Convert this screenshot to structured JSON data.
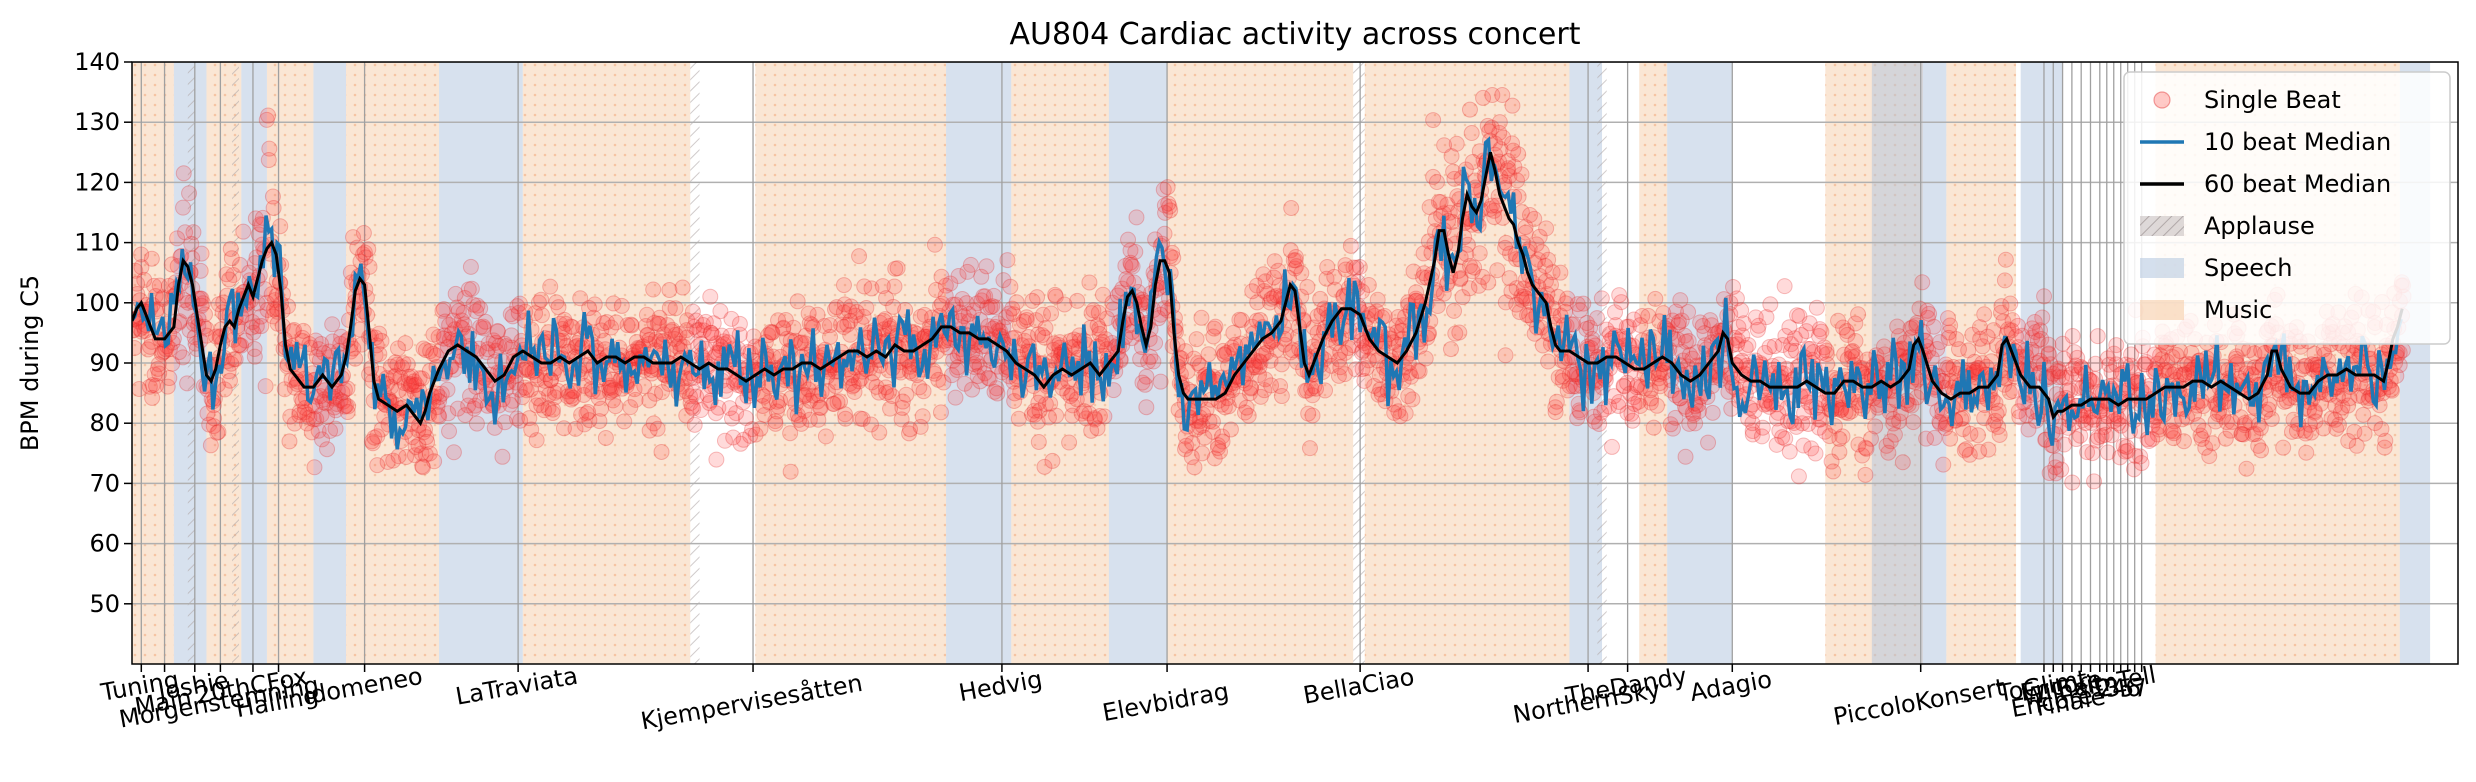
{
  "chart_data": {
    "type": "line",
    "title": "AU804 Cardiac activity across concert",
    "xlabel": "",
    "ylabel": "BPM during C5",
    "ylim": [
      40,
      140
    ],
    "yticks": [
      50,
      60,
      70,
      80,
      90,
      100,
      110,
      120,
      130,
      140
    ],
    "xlim": [
      0,
      1000
    ],
    "grid": true,
    "legend_position": "top-right",
    "legend": [
      {
        "label": "Single Beat",
        "kind": "scatter",
        "color": "#ff0000"
      },
      {
        "label": "10 beat Median",
        "kind": "line",
        "color": "#1f77b4"
      },
      {
        "label": "60 beat Median",
        "kind": "line",
        "color": "#000000"
      },
      {
        "label": "Applause",
        "kind": "patch",
        "color": "#c8c0c0"
      },
      {
        "label": "Speech",
        "kind": "patch",
        "color": "#b0c4de"
      },
      {
        "label": "Music",
        "kind": "patch",
        "color": "#f5c8a0"
      }
    ],
    "xtick_labels": [
      {
        "x": 4,
        "label": "Tuning"
      },
      {
        "x": 14,
        "label": "Main"
      },
      {
        "x": 27,
        "label": "Joshie"
      },
      {
        "x": 38,
        "label": "Morgenstemning"
      },
      {
        "x": 52,
        "label": "20thCFox"
      },
      {
        "x": 63,
        "label": "Halling"
      },
      {
        "x": 100,
        "label": "Idomeneo"
      },
      {
        "x": 166,
        "label": "LaTraviata"
      },
      {
        "x": 267,
        "label": "Kjempervisesåtten"
      },
      {
        "x": 374,
        "label": "Hedvig"
      },
      {
        "x": 445,
        "label": "Elevbidrag"
      },
      {
        "x": 528,
        "label": "BellaCiao"
      },
      {
        "x": 626,
        "label": "NorthernSky"
      },
      {
        "x": 643,
        "label": "TheDandy"
      },
      {
        "x": 688,
        "label": "Adagio"
      },
      {
        "x": 769,
        "label": "PiccoloKonsert"
      },
      {
        "x": 822,
        "label": "ToGlimt"
      },
      {
        "x": 826,
        "label": "Encore"
      },
      {
        "x": 830,
        "label": "Encore"
      },
      {
        "x": 834,
        "label": "Finale"
      },
      {
        "x": 838,
        "label": "Exit"
      },
      {
        "x": 842,
        "label": "WilhelmTell"
      },
      {
        "x": 846,
        "label": "1"
      },
      {
        "x": 849,
        "label": "2"
      },
      {
        "x": 852,
        "label": "3"
      },
      {
        "x": 855,
        "label": "4"
      },
      {
        "x": 858,
        "label": "5"
      },
      {
        "x": 861,
        "label": "6"
      },
      {
        "x": 864,
        "label": "7"
      }
    ],
    "x_vlines": [
      4,
      14,
      27,
      38,
      52,
      63,
      100,
      166,
      267,
      374,
      445,
      528,
      626,
      643,
      688,
      769,
      822,
      826,
      830,
      834,
      838,
      842,
      846,
      849,
      852,
      855,
      858,
      861,
      864
    ],
    "segments": {
      "music": [
        [
          0,
          18
        ],
        [
          32,
          47
        ],
        [
          58,
          78
        ],
        [
          92,
          132
        ],
        [
          168,
          240
        ],
        [
          268,
          350
        ],
        [
          378,
          420
        ],
        [
          445,
          525
        ],
        [
          530,
          618
        ],
        [
          648,
          660
        ],
        [
          728,
          770
        ],
        [
          780,
          810
        ],
        [
          870,
          975
        ]
      ],
      "speech": [
        [
          18,
          32
        ],
        [
          47,
          58
        ],
        [
          78,
          92
        ],
        [
          132,
          168
        ],
        [
          350,
          378
        ],
        [
          420,
          445
        ],
        [
          618,
          632
        ],
        [
          660,
          688
        ],
        [
          748,
          780
        ],
        [
          812,
          830
        ],
        [
          975,
          988
        ]
      ],
      "applause": [
        [
          24,
          27
        ],
        [
          43,
          46
        ],
        [
          240,
          244
        ],
        [
          525,
          530
        ],
        [
          630,
          634
        ]
      ]
    },
    "median60": [
      [
        0,
        97
      ],
      [
        2,
        99
      ],
      [
        4,
        100
      ],
      [
        6,
        98
      ],
      [
        8,
        96
      ],
      [
        10,
        94
      ],
      [
        14,
        94
      ],
      [
        18,
        96
      ],
      [
        20,
        103
      ],
      [
        22,
        107
      ],
      [
        24,
        106
      ],
      [
        26,
        103
      ],
      [
        28,
        98
      ],
      [
        30,
        93
      ],
      [
        32,
        88
      ],
      [
        34,
        87
      ],
      [
        36,
        89
      ],
      [
        38,
        93
      ],
      [
        40,
        96
      ],
      [
        42,
        97
      ],
      [
        44,
        96
      ],
      [
        46,
        99
      ],
      [
        48,
        101
      ],
      [
        50,
        103
      ],
      [
        52,
        101
      ],
      [
        54,
        104
      ],
      [
        56,
        107
      ],
      [
        58,
        109
      ],
      [
        60,
        110
      ],
      [
        62,
        108
      ],
      [
        64,
        102
      ],
      [
        66,
        93
      ],
      [
        68,
        89
      ],
      [
        70,
        88
      ],
      [
        72,
        87
      ],
      [
        74,
        86
      ],
      [
        78,
        86
      ],
      [
        82,
        88
      ],
      [
        86,
        86
      ],
      [
        90,
        88
      ],
      [
        92,
        91
      ],
      [
        94,
        96
      ],
      [
        96,
        102
      ],
      [
        98,
        104
      ],
      [
        100,
        103
      ],
      [
        102,
        95
      ],
      [
        104,
        87
      ],
      [
        106,
        84
      ],
      [
        110,
        83
      ],
      [
        114,
        82
      ],
      [
        118,
        83
      ],
      [
        120,
        82
      ],
      [
        124,
        80
      ],
      [
        126,
        82
      ],
      [
        128,
        85
      ],
      [
        132,
        89
      ],
      [
        136,
        92
      ],
      [
        140,
        93
      ],
      [
        144,
        92
      ],
      [
        148,
        91
      ],
      [
        152,
        89
      ],
      [
        156,
        87
      ],
      [
        160,
        88
      ],
      [
        164,
        91
      ],
      [
        168,
        92
      ],
      [
        172,
        91
      ],
      [
        176,
        90
      ],
      [
        180,
        90
      ],
      [
        184,
        91
      ],
      [
        188,
        90
      ],
      [
        192,
        91
      ],
      [
        196,
        92
      ],
      [
        200,
        90
      ],
      [
        204,
        91
      ],
      [
        208,
        91
      ],
      [
        212,
        90
      ],
      [
        216,
        91
      ],
      [
        220,
        91
      ],
      [
        224,
        90
      ],
      [
        228,
        90
      ],
      [
        232,
        90
      ],
      [
        236,
        91
      ],
      [
        240,
        90
      ],
      [
        244,
        89
      ],
      [
        248,
        90
      ],
      [
        252,
        89
      ],
      [
        256,
        89
      ],
      [
        260,
        88
      ],
      [
        264,
        87
      ],
      [
        268,
        88
      ],
      [
        272,
        89
      ],
      [
        276,
        88
      ],
      [
        280,
        89
      ],
      [
        284,
        89
      ],
      [
        288,
        90
      ],
      [
        292,
        90
      ],
      [
        296,
        89
      ],
      [
        300,
        90
      ],
      [
        304,
        91
      ],
      [
        308,
        92
      ],
      [
        312,
        92
      ],
      [
        316,
        91
      ],
      [
        320,
        92
      ],
      [
        324,
        91
      ],
      [
        328,
        93
      ],
      [
        332,
        92
      ],
      [
        336,
        92
      ],
      [
        340,
        93
      ],
      [
        344,
        94
      ],
      [
        348,
        96
      ],
      [
        352,
        96
      ],
      [
        356,
        95
      ],
      [
        360,
        95
      ],
      [
        364,
        94
      ],
      [
        368,
        94
      ],
      [
        372,
        93
      ],
      [
        376,
        92
      ],
      [
        380,
        90
      ],
      [
        384,
        89
      ],
      [
        388,
        88
      ],
      [
        392,
        86
      ],
      [
        396,
        88
      ],
      [
        400,
        89
      ],
      [
        404,
        88
      ],
      [
        408,
        89
      ],
      [
        412,
        90
      ],
      [
        416,
        88
      ],
      [
        420,
        90
      ],
      [
        424,
        92
      ],
      [
        426,
        97
      ],
      [
        428,
        101
      ],
      [
        430,
        102
      ],
      [
        432,
        100
      ],
      [
        434,
        96
      ],
      [
        436,
        93
      ],
      [
        438,
        96
      ],
      [
        440,
        103
      ],
      [
        442,
        107
      ],
      [
        444,
        107
      ],
      [
        446,
        105
      ],
      [
        448,
        95
      ],
      [
        450,
        88
      ],
      [
        452,
        85
      ],
      [
        454,
        84
      ],
      [
        458,
        84
      ],
      [
        462,
        84
      ],
      [
        466,
        84
      ],
      [
        470,
        85
      ],
      [
        474,
        88
      ],
      [
        478,
        90
      ],
      [
        482,
        92
      ],
      [
        486,
        94
      ],
      [
        490,
        95
      ],
      [
        494,
        97
      ],
      [
        496,
        100
      ],
      [
        498,
        103
      ],
      [
        500,
        102
      ],
      [
        502,
        96
      ],
      [
        504,
        90
      ],
      [
        506,
        88
      ],
      [
        508,
        90
      ],
      [
        512,
        94
      ],
      [
        516,
        97
      ],
      [
        520,
        99
      ],
      [
        524,
        99
      ],
      [
        528,
        98
      ],
      [
        532,
        94
      ],
      [
        536,
        92
      ],
      [
        540,
        91
      ],
      [
        544,
        90
      ],
      [
        548,
        92
      ],
      [
        552,
        95
      ],
      [
        556,
        100
      ],
      [
        560,
        107
      ],
      [
        562,
        112
      ],
      [
        564,
        112
      ],
      [
        566,
        108
      ],
      [
        568,
        105
      ],
      [
        570,
        108
      ],
      [
        572,
        114
      ],
      [
        574,
        118
      ],
      [
        576,
        116
      ],
      [
        578,
        115
      ],
      [
        580,
        117
      ],
      [
        582,
        121
      ],
      [
        584,
        125
      ],
      [
        586,
        122
      ],
      [
        588,
        118
      ],
      [
        590,
        116
      ],
      [
        592,
        114
      ],
      [
        594,
        113
      ],
      [
        596,
        110
      ],
      [
        598,
        108
      ],
      [
        600,
        105
      ],
      [
        602,
        103
      ],
      [
        604,
        102
      ],
      [
        606,
        101
      ],
      [
        608,
        100
      ],
      [
        610,
        96
      ],
      [
        612,
        93
      ],
      [
        614,
        92
      ],
      [
        618,
        92
      ],
      [
        622,
        91
      ],
      [
        626,
        90
      ],
      [
        630,
        90
      ],
      [
        634,
        91
      ],
      [
        638,
        91
      ],
      [
        642,
        90
      ],
      [
        646,
        89
      ],
      [
        650,
        89
      ],
      [
        654,
        90
      ],
      [
        658,
        91
      ],
      [
        662,
        90
      ],
      [
        666,
        88
      ],
      [
        670,
        87
      ],
      [
        674,
        88
      ],
      [
        678,
        90
      ],
      [
        682,
        92
      ],
      [
        684,
        95
      ],
      [
        686,
        94
      ],
      [
        688,
        90
      ],
      [
        692,
        88
      ],
      [
        696,
        87
      ],
      [
        700,
        87
      ],
      [
        704,
        86
      ],
      [
        708,
        86
      ],
      [
        712,
        86
      ],
      [
        716,
        86
      ],
      [
        720,
        87
      ],
      [
        724,
        86
      ],
      [
        728,
        85
      ],
      [
        732,
        85
      ],
      [
        736,
        87
      ],
      [
        740,
        87
      ],
      [
        744,
        86
      ],
      [
        748,
        86
      ],
      [
        752,
        87
      ],
      [
        756,
        86
      ],
      [
        760,
        87
      ],
      [
        764,
        89
      ],
      [
        766,
        93
      ],
      [
        768,
        94
      ],
      [
        770,
        92
      ],
      [
        774,
        87
      ],
      [
        778,
        85
      ],
      [
        782,
        84
      ],
      [
        786,
        85
      ],
      [
        790,
        85
      ],
      [
        794,
        86
      ],
      [
        798,
        86
      ],
      [
        802,
        88
      ],
      [
        804,
        93
      ],
      [
        806,
        94
      ],
      [
        808,
        92
      ],
      [
        812,
        88
      ],
      [
        816,
        86
      ],
      [
        820,
        86
      ],
      [
        824,
        84
      ],
      [
        826,
        81
      ],
      [
        828,
        82
      ],
      [
        830,
        82
      ],
      [
        834,
        83
      ],
      [
        838,
        83
      ],
      [
        842,
        84
      ],
      [
        846,
        84
      ],
      [
        850,
        84
      ],
      [
        854,
        83
      ],
      [
        858,
        84
      ],
      [
        862,
        84
      ],
      [
        866,
        84
      ],
      [
        870,
        85
      ],
      [
        874,
        86
      ],
      [
        878,
        86
      ],
      [
        882,
        86
      ],
      [
        886,
        87
      ],
      [
        890,
        87
      ],
      [
        894,
        86
      ],
      [
        898,
        87
      ],
      [
        902,
        86
      ],
      [
        906,
        85
      ],
      [
        910,
        84
      ],
      [
        914,
        85
      ],
      [
        918,
        88
      ],
      [
        920,
        92
      ],
      [
        922,
        92
      ],
      [
        924,
        89
      ],
      [
        928,
        86
      ],
      [
        932,
        85
      ],
      [
        936,
        85
      ],
      [
        940,
        87
      ],
      [
        944,
        88
      ],
      [
        948,
        88
      ],
      [
        952,
        89
      ],
      [
        956,
        88
      ],
      [
        960,
        88
      ],
      [
        964,
        88
      ],
      [
        968,
        87
      ],
      [
        970,
        90
      ],
      [
        972,
        94
      ],
      [
        974,
        96
      ],
      [
        976,
        99
      ]
    ]
  }
}
